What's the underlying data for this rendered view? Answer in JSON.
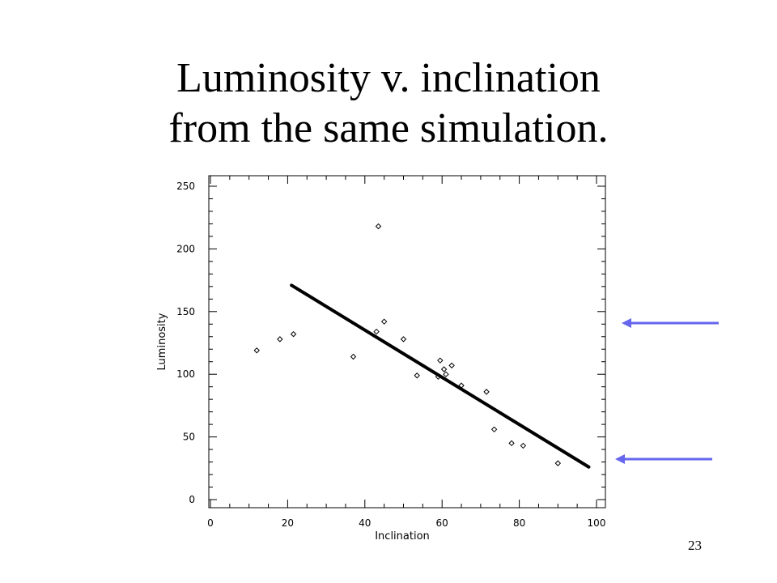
{
  "slide": {
    "title_line1": "Luminosity v. inclination",
    "title_line2": "from the same simulation.",
    "page_number": "23"
  },
  "colors": {
    "arrow": "#6666ee",
    "axis": "#000000",
    "fit_line": "#000000"
  },
  "chart_data": {
    "type": "scatter",
    "title": "",
    "xlabel": "Inclination",
    "ylabel": "Luminosity",
    "xlim": [
      0,
      100
    ],
    "ylim": [
      0,
      250
    ],
    "xticks": [
      0,
      20,
      40,
      60,
      80,
      100
    ],
    "yticks": [
      0,
      50,
      100,
      150,
      200,
      250
    ],
    "marker": "diamond",
    "points": [
      {
        "x": 12,
        "y": 119
      },
      {
        "x": 18,
        "y": 128
      },
      {
        "x": 21.5,
        "y": 132
      },
      {
        "x": 37,
        "y": 114
      },
      {
        "x": 43,
        "y": 134
      },
      {
        "x": 43.5,
        "y": 218
      },
      {
        "x": 45,
        "y": 142
      },
      {
        "x": 50,
        "y": 128
      },
      {
        "x": 53.5,
        "y": 99
      },
      {
        "x": 59,
        "y": 98
      },
      {
        "x": 59.5,
        "y": 111
      },
      {
        "x": 60.5,
        "y": 104
      },
      {
        "x": 61,
        "y": 100
      },
      {
        "x": 62.5,
        "y": 107
      },
      {
        "x": 65,
        "y": 91
      },
      {
        "x": 71.5,
        "y": 86
      },
      {
        "x": 73.5,
        "y": 56
      },
      {
        "x": 78,
        "y": 45
      },
      {
        "x": 81,
        "y": 43
      },
      {
        "x": 90,
        "y": 29
      }
    ],
    "fit_line": {
      "x": [
        21,
        98
      ],
      "y": [
        171,
        26
      ]
    },
    "arrows_at_luminosity": [
      140,
      30
    ]
  }
}
